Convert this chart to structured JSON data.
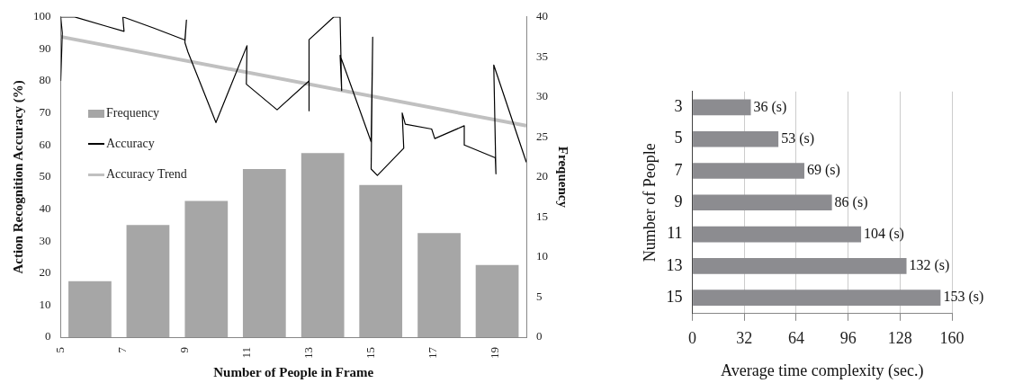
{
  "chart_data": [
    {
      "type": "bar",
      "xlabel": "Number of People in Frame",
      "ylabel": "Action Recognition Accuracy (%)",
      "y2label": "Frequency",
      "xlim": [
        5,
        20
      ],
      "xticks": [
        5,
        7,
        9,
        11,
        13,
        15,
        17,
        19
      ],
      "ylim": [
        0,
        100
      ],
      "yticks": [
        0,
        10,
        20,
        30,
        40,
        50,
        60,
        70,
        80,
        90,
        100
      ],
      "y2lim": [
        0,
        40
      ],
      "y2ticks": [
        0,
        5,
        10,
        15,
        20,
        25,
        30,
        35,
        40
      ],
      "legend": "left",
      "marker": "none",
      "series": [
        {
          "name": "Frequency",
          "type": "bar",
          "axis": "y2",
          "color": "#a6a6a6",
          "x": [
            5.94,
            7.81,
            9.69,
            11.56,
            13.44,
            15.31,
            17.19,
            19.06
          ],
          "values": [
            7,
            14,
            17,
            21,
            23,
            19,
            13,
            9
          ]
        },
        {
          "name": "Accuracy",
          "type": "line",
          "color": "#000000",
          "x": [
            5,
            5.05,
            5,
            5.45,
            6.5,
            7.04,
            7,
            8,
            9,
            9.05,
            9,
            9.1,
            10,
            11,
            10.98,
            11.97,
            13,
            13,
            13,
            13.8,
            14,
            14.05,
            14,
            15,
            15.05,
            15,
            15.2,
            16.05,
            16,
            16.1,
            16.95,
            17.05,
            18,
            18,
            19,
            19.02,
            18.95,
            20
          ],
          "values": [
            80,
            95,
            100,
            100,
            97,
            95.5,
            100,
            96.5,
            92.8,
            99,
            92,
            89,
            67,
            91,
            79,
            71,
            80,
            70.7,
            92.9,
            100,
            100,
            77,
            88,
            61,
            93.7,
            52.5,
            50.5,
            59,
            70,
            66.5,
            65,
            62,
            66,
            60,
            56,
            51,
            85,
            54.6
          ]
        },
        {
          "name": "Accuracy Trend",
          "type": "line",
          "color": "#c0c0c0",
          "x": [
            5,
            20
          ],
          "values": [
            93.8,
            66
          ]
        }
      ]
    },
    {
      "type": "bar",
      "orientation": "horizontal",
      "categories": [
        "3",
        "5",
        "7",
        "9",
        "11",
        "13",
        "15"
      ],
      "values": [
        36,
        53,
        69,
        86,
        104,
        132,
        153
      ],
      "value_labels": [
        "36 (s)",
        "53 (s)",
        "69 (s)",
        "86 (s)",
        "104 (s)",
        "132 (s)",
        "153 (s)"
      ],
      "color": "#8c8c90",
      "xlabel": "Average time complexity (sec.)",
      "ylabel": "Number of People",
      "xlim": [
        0,
        160
      ],
      "xticks": [
        0,
        32,
        64,
        96,
        128,
        160
      ],
      "grid": "x"
    }
  ]
}
